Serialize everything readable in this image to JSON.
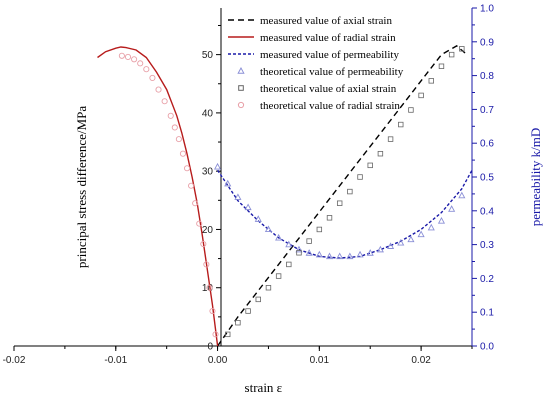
{
  "chart_data": {
    "type": "line",
    "xlabel": "strain ε",
    "ylabel_left": "principal stress difference/MPa",
    "ylabel_right": "permeability k/mD",
    "xlim": [
      -0.02,
      0.025
    ],
    "ylim_left": [
      0,
      58
    ],
    "ylim_right": [
      0,
      1.0
    ],
    "x_ticks": [
      -0.02,
      -0.01,
      0.0,
      0.01,
      0.02
    ],
    "x_tick_labels": [
      "-0.02",
      "-0.01",
      "0.00",
      "0.01",
      "0.02"
    ],
    "y_left_ticks": [
      0,
      10,
      20,
      30,
      40,
      50
    ],
    "y_left_tick_labels": [
      "0",
      "10",
      "20",
      "30",
      "40",
      "50"
    ],
    "y_right_ticks": [
      0,
      0.1,
      0.2,
      0.3,
      0.4,
      0.5,
      0.6,
      0.7,
      0.8,
      0.9,
      1.0
    ],
    "y_right_tick_labels": [
      "0.0",
      "0.1",
      "0.2",
      "0.3",
      "0.4",
      "0.5",
      "0.6",
      "0.7",
      "0.8",
      "0.9",
      "1.0"
    ],
    "legend_position": "top-right",
    "series": [
      {
        "name": "measured value of axial strain",
        "kind": "line",
        "style": "dashed",
        "color": "#000000",
        "axis": "left",
        "x": [
          0,
          0.002,
          0.004,
          0.006,
          0.008,
          0.01,
          0.012,
          0.014,
          0.016,
          0.018,
          0.02,
          0.022,
          0.0235,
          0.0245
        ],
        "y": [
          0,
          5,
          9.5,
          14,
          18.5,
          23,
          27.5,
          32,
          36.5,
          41,
          45.5,
          50,
          51.5,
          50
        ]
      },
      {
        "name": "measured value of radial strain",
        "kind": "line",
        "style": "solid",
        "color": "#b71c1c",
        "axis": "left",
        "x": [
          0,
          -0.0005,
          -0.001,
          -0.0015,
          -0.002,
          -0.0025,
          -0.003,
          -0.0035,
          -0.004,
          -0.005,
          -0.006,
          -0.007,
          -0.008,
          -0.009,
          -0.0095,
          -0.01,
          -0.011,
          -0.0118
        ],
        "y": [
          0,
          7,
          13,
          19,
          24.5,
          29,
          33,
          36.5,
          39.5,
          44,
          47,
          49.5,
          50.8,
          51.2,
          51.3,
          51.1,
          50.5,
          49.5
        ]
      },
      {
        "name": "measured value of permeability",
        "kind": "line",
        "style": "dotted",
        "color": "#1a1aa8",
        "axis": "right",
        "x": [
          0,
          0.002,
          0.004,
          0.006,
          0.008,
          0.01,
          0.012,
          0.014,
          0.016,
          0.018,
          0.02,
          0.022,
          0.024,
          0.025
        ],
        "y": [
          0.52,
          0.43,
          0.37,
          0.32,
          0.285,
          0.265,
          0.26,
          0.265,
          0.285,
          0.31,
          0.345,
          0.395,
          0.465,
          0.52
        ]
      },
      {
        "name": "theoretical value of permeability",
        "kind": "scatter",
        "marker": "triangle",
        "color": "#8a8fd6",
        "axis": "right",
        "x": [
          0.0,
          0.001,
          0.002,
          0.003,
          0.004,
          0.005,
          0.006,
          0.007,
          0.008,
          0.009,
          0.01,
          0.011,
          0.012,
          0.013,
          0.014,
          0.015,
          0.016,
          0.017,
          0.018,
          0.019,
          0.02,
          0.021,
          0.022,
          0.023,
          0.024
        ],
        "y": [
          0.53,
          0.48,
          0.44,
          0.41,
          0.375,
          0.345,
          0.32,
          0.3,
          0.285,
          0.275,
          0.27,
          0.265,
          0.265,
          0.265,
          0.27,
          0.275,
          0.285,
          0.295,
          0.305,
          0.315,
          0.33,
          0.35,
          0.37,
          0.405,
          0.445
        ]
      },
      {
        "name": "theoretical value of axial strain",
        "kind": "scatter",
        "marker": "square",
        "color": "#666666",
        "axis": "left",
        "x": [
          0.001,
          0.002,
          0.003,
          0.004,
          0.005,
          0.006,
          0.007,
          0.008,
          0.009,
          0.01,
          0.011,
          0.012,
          0.013,
          0.014,
          0.015,
          0.016,
          0.017,
          0.018,
          0.019,
          0.02,
          0.021,
          0.022,
          0.023,
          0.024
        ],
        "y": [
          2,
          4,
          6,
          8,
          10,
          12,
          14,
          16,
          18,
          20,
          22,
          24.5,
          26.5,
          29,
          31,
          33,
          35.5,
          38,
          40.5,
          43,
          45.5,
          48,
          50,
          51
        ]
      },
      {
        "name": "theoretical value of radial strain",
        "kind": "scatter",
        "marker": "circle",
        "color": "#e8a0a8",
        "axis": "left",
        "x": [
          -0.0002,
          -0.0005,
          -0.0008,
          -0.0011,
          -0.0014,
          -0.0018,
          -0.0022,
          -0.0026,
          -0.003,
          -0.0034,
          -0.0038,
          -0.0042,
          -0.0046,
          -0.0052,
          -0.0058,
          -0.0064,
          -0.007,
          -0.0076,
          -0.0082,
          -0.0088,
          -0.0094
        ],
        "y": [
          2,
          6,
          10,
          14,
          17.5,
          21,
          24.5,
          27.5,
          30.5,
          33,
          35.5,
          37.5,
          39.5,
          42,
          44,
          46,
          47.5,
          48.5,
          49.2,
          49.6,
          49.8
        ]
      }
    ]
  }
}
